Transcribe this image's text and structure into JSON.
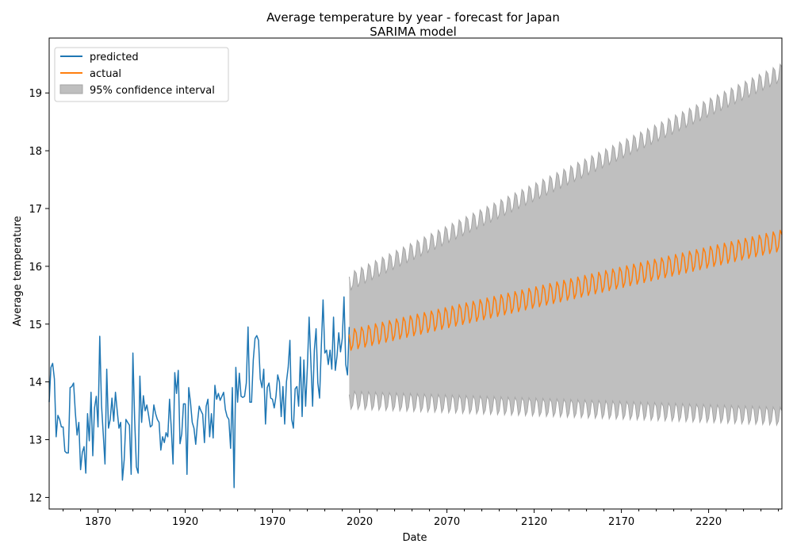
{
  "chart_data": {
    "type": "line",
    "title": "Average temperature by year - forecast for Japan",
    "subtitle": "SARIMA model",
    "xlabel": "Date",
    "ylabel": "Average temperature",
    "xlim": [
      1842,
      2262
    ],
    "ylim": [
      11.8,
      19.95
    ],
    "x_ticks": [
      1870,
      1920,
      1970,
      2020,
      2070,
      2120,
      2170,
      2220
    ],
    "y_ticks": [
      12,
      13,
      14,
      15,
      16,
      17,
      18,
      19
    ],
    "grid": false,
    "legend_position": "top-left",
    "colors": {
      "predicted": "#1f77b4",
      "actual": "#ff7f0e",
      "ci": "#bfbfbf",
      "ci_edge": "#a6a6a6"
    },
    "legend": [
      {
        "label": "predicted",
        "kind": "line",
        "color": "#1f77b4"
      },
      {
        "label": "actual",
        "kind": "line",
        "color": "#ff7f0e"
      },
      {
        "label": "95% confidence interval",
        "kind": "patch",
        "color": "#bfbfbf"
      }
    ],
    "historical": {
      "x_start": 1842,
      "values": [
        13.65,
        14.25,
        14.32,
        14.05,
        13.05,
        13.42,
        13.35,
        13.22,
        13.22,
        12.8,
        12.77,
        12.77,
        13.9,
        13.92,
        13.98,
        13.47,
        13.08,
        13.3,
        12.48,
        12.78,
        12.88,
        12.42,
        13.45,
        12.98,
        13.82,
        12.72,
        13.55,
        13.75,
        13.22,
        14.79,
        13.6,
        13.1,
        12.58,
        14.22,
        13.2,
        13.35,
        13.72,
        13.32,
        13.82,
        13.5,
        13.2,
        13.3,
        12.3,
        12.65,
        13.35,
        13.3,
        13.25,
        12.4,
        14.5,
        13.35,
        12.53,
        12.42,
        14.1,
        13.3,
        13.76,
        13.5,
        13.6,
        13.42,
        13.22,
        13.25,
        13.6,
        13.45,
        13.35,
        13.3,
        12.82,
        13.05,
        12.95,
        13.12,
        13.05,
        13.7,
        13.2,
        12.58,
        14.16,
        13.8,
        14.2,
        12.93,
        13.1,
        13.62,
        13.62,
        12.4,
        13.9,
        13.65,
        13.3,
        13.2,
        12.92,
        13.3,
        13.58,
        13.5,
        13.44,
        12.95,
        13.58,
        13.7,
        13.05,
        13.45,
        13.03,
        13.94,
        13.7,
        13.8,
        13.68,
        13.75,
        13.82,
        13.52,
        13.4,
        13.35,
        12.85,
        13.9,
        12.17,
        14.25,
        13.65,
        14.15,
        13.75,
        13.73,
        13.75,
        13.98,
        14.95,
        13.65,
        13.65,
        14.38,
        14.75,
        14.8,
        14.72,
        14.05,
        13.9,
        14.22,
        13.27,
        13.9,
        13.98,
        13.72,
        13.7,
        13.55,
        13.75,
        14.12,
        14.0,
        13.4,
        13.92,
        13.27,
        14.0,
        14.25,
        14.72,
        13.35,
        13.2,
        13.88,
        13.92,
        13.58,
        14.43,
        13.4,
        14.38,
        13.58,
        14.25,
        15.12,
        14.35,
        13.58,
        14.55,
        14.92,
        13.98,
        13.72,
        14.62,
        15.42,
        14.5,
        14.55,
        14.3,
        14.55,
        14.22,
        15.12,
        14.2,
        14.45,
        14.85,
        14.52,
        14.75,
        15.47,
        14.3,
        14.12,
        14.95
      ]
    },
    "forecast": {
      "x_start": 2014,
      "x_end": 2262,
      "period": 4,
      "actual_base_start": 14.82,
      "actual_base_end": 16.55,
      "actual_pattern": [
        0.0,
        -0.28,
        -0.2,
        0.08
      ],
      "upper_start": 15.82,
      "upper_end": 19.45,
      "upper_pattern": [
        0.0,
        -0.25,
        -0.18,
        0.06
      ],
      "lower_start": 13.78,
      "lower_end": 13.5,
      "lower_pattern": [
        0.0,
        -0.25,
        -0.18,
        0.06
      ]
    }
  }
}
